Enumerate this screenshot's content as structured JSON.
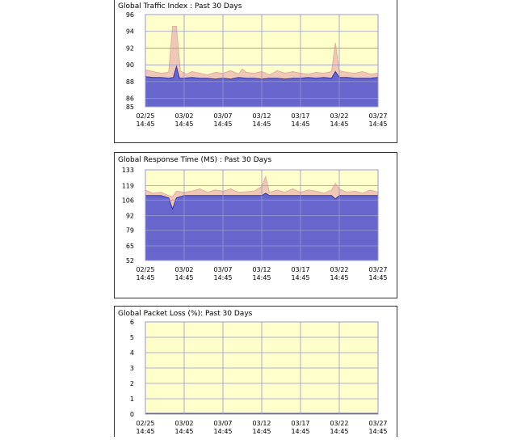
{
  "colors": {
    "plot_bg": "#ffffcc",
    "grid": "#9999cc",
    "variance": "#f0c8b8",
    "variance_line": "#e0b0a0",
    "main": "#6666cc",
    "main_line": "#3333aa",
    "border": "#333333"
  },
  "chart_data": [
    {
      "type": "area",
      "title": "Global Traffic Index : Past 30 Days",
      "x_ticks": [
        [
          "02/25",
          "14:45"
        ],
        [
          "03/02",
          "14:45"
        ],
        [
          "03/07",
          "14:45"
        ],
        [
          "03/12",
          "14:45"
        ],
        [
          "03/17",
          "14:45"
        ],
        [
          "03/22",
          "14:45"
        ],
        [
          "03/27",
          "14:45"
        ]
      ],
      "x_range_days": [
        0,
        30
      ],
      "y_ticks": [
        "96",
        "94",
        "92",
        "90",
        "88",
        "86",
        "85"
      ],
      "y_tick_values": [
        96,
        94,
        92,
        90,
        88,
        86,
        85
      ],
      "ylim": [
        85,
        96
      ],
      "grid": true,
      "series": [
        {
          "role": "upper",
          "x": [
            0,
            1,
            2,
            3,
            3.5,
            4,
            4.5,
            5,
            5.3,
            6,
            7,
            8,
            9,
            10,
            11,
            12,
            12.5,
            13,
            14,
            15,
            16,
            17,
            18,
            19,
            20,
            21,
            22,
            23,
            24,
            24.5,
            25,
            26,
            27,
            28,
            29,
            30
          ],
          "y": [
            89.4,
            89.2,
            89.0,
            89.1,
            94.6,
            94.6,
            89.3,
            89.0,
            88.9,
            89.2,
            89.0,
            88.8,
            89.1,
            89.0,
            89.3,
            88.9,
            89.5,
            89.1,
            89.0,
            89.2,
            88.8,
            89.3,
            89.0,
            89.2,
            89.0,
            88.9,
            89.1,
            89.0,
            89.2,
            92.6,
            89.3,
            89.1,
            89.0,
            89.2,
            88.9,
            89.0
          ]
        },
        {
          "role": "main",
          "x": [
            0,
            1,
            2,
            3,
            3.6,
            4,
            4.4,
            5,
            6,
            7,
            8,
            9,
            10,
            11,
            12,
            13,
            14,
            15,
            16,
            17,
            18,
            19,
            20,
            21,
            22,
            23,
            24,
            24.5,
            25,
            26,
            27,
            28,
            29,
            30
          ],
          "y": [
            88.6,
            88.5,
            88.5,
            88.4,
            88.5,
            89.8,
            88.4,
            88.4,
            88.5,
            88.4,
            88.4,
            88.3,
            88.4,
            88.3,
            88.5,
            88.4,
            88.4,
            88.3,
            88.4,
            88.4,
            88.3,
            88.4,
            88.4,
            88.5,
            88.4,
            88.5,
            88.4,
            89.2,
            88.5,
            88.5,
            88.4,
            88.4,
            88.4,
            88.5
          ]
        }
      ]
    },
    {
      "type": "area",
      "title": "Global Response Time (MS) : Past 30 Days",
      "x_ticks": [
        [
          "02/25",
          "14:45"
        ],
        [
          "03/02",
          "14:45"
        ],
        [
          "03/07",
          "14:45"
        ],
        [
          "03/12",
          "14:45"
        ],
        [
          "03/17",
          "14:45"
        ],
        [
          "03/22",
          "14:45"
        ],
        [
          "03/27",
          "14:45"
        ]
      ],
      "x_range_days": [
        0,
        30
      ],
      "y_ticks": [
        "133",
        "119",
        "106",
        "92",
        "79",
        "65",
        "52"
      ],
      "y_tick_values": [
        133,
        119,
        106,
        92,
        79,
        65,
        52
      ],
      "ylim": [
        52,
        133
      ],
      "grid": true,
      "series": [
        {
          "role": "upper",
          "x": [
            0,
            1,
            2,
            3,
            3.5,
            4,
            5,
            6,
            7,
            8,
            9,
            10,
            11,
            12,
            14,
            15,
            15.5,
            16,
            17,
            18,
            19,
            20,
            21,
            22,
            23,
            24,
            24.5,
            25,
            26,
            27,
            28,
            29,
            30
          ],
          "y": [
            115,
            112,
            113,
            110,
            109,
            114,
            113,
            114,
            116,
            113,
            115,
            114,
            116,
            113,
            114,
            118,
            127,
            113,
            115,
            113,
            116,
            113,
            115,
            114,
            112,
            115,
            121,
            116,
            113,
            114,
            112,
            115,
            113
          ]
        },
        {
          "role": "main",
          "x": [
            0,
            1,
            2,
            3,
            3.5,
            4,
            5,
            6,
            7,
            8,
            9,
            10,
            11,
            12,
            13,
            14,
            15,
            15.5,
            16,
            17,
            18,
            19,
            20,
            21,
            22,
            23,
            24,
            24.5,
            25,
            26,
            27,
            28,
            29,
            30
          ],
          "y": [
            110,
            110,
            110,
            108,
            98,
            108,
            110,
            110,
            110,
            110,
            110,
            110,
            110,
            110,
            110,
            110,
            110,
            112,
            110,
            110,
            110,
            110,
            110,
            110,
            110,
            110,
            110,
            107,
            110,
            110,
            110,
            110,
            110,
            110
          ]
        }
      ]
    },
    {
      "type": "area",
      "title": "Global Packet Loss (%): Past 30 Days",
      "x_ticks": [
        [
          "02/25",
          "14:45"
        ],
        [
          "03/02",
          "14:45"
        ],
        [
          "03/07",
          "14:45"
        ],
        [
          "03/12",
          "14:45"
        ],
        [
          "03/17",
          "14:45"
        ],
        [
          "03/22",
          "14:45"
        ],
        [
          "03/27",
          "14:45"
        ]
      ],
      "x_range_days": [
        0,
        30
      ],
      "y_ticks": [
        "6",
        "5",
        "4",
        "3",
        "2",
        "1",
        "0"
      ],
      "y_tick_values": [
        6,
        5,
        4,
        3,
        2,
        1,
        0
      ],
      "ylim": [
        0,
        6
      ],
      "grid": true,
      "series": [
        {
          "role": "main",
          "x": [
            0,
            30
          ],
          "y": [
            0.05,
            0.05
          ]
        }
      ]
    }
  ]
}
